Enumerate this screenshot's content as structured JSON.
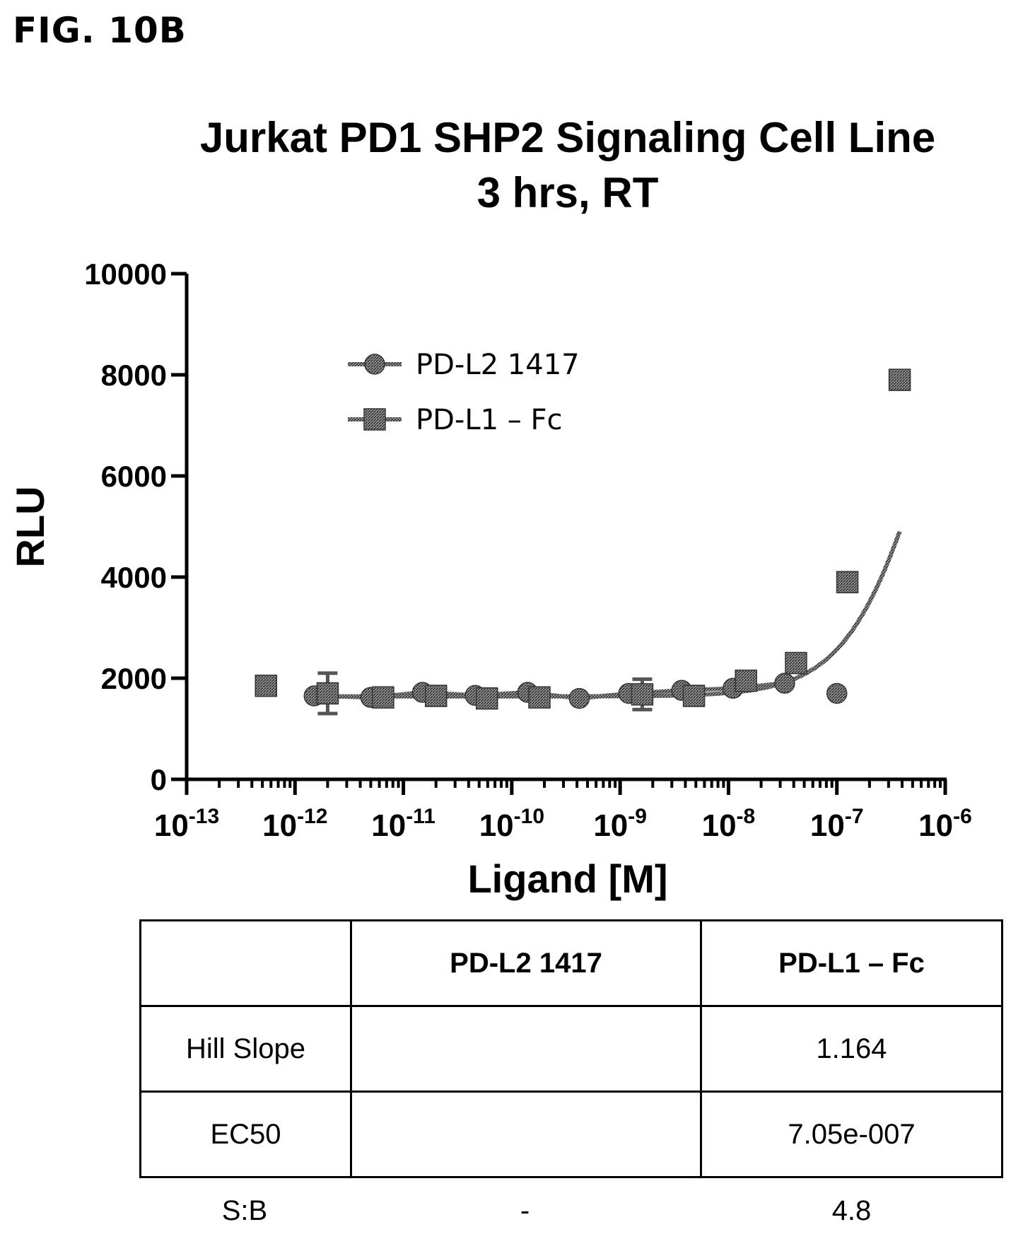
{
  "figure_label": "FIG. 10B",
  "chart_data": {
    "type": "scatter",
    "title": "Jurkat PD1 SHP2 Signaling Cell Line",
    "subtitle": "3 hrs, RT",
    "xlabel": "Ligand [M]",
    "ylabel": "RLU",
    "xscale": "log",
    "xlim": [
      1e-13,
      1e-06
    ],
    "ylim": [
      0,
      10000
    ],
    "yticks": [
      "0",
      "2000",
      "4000",
      "6000",
      "8000",
      "10000"
    ],
    "xticks": [
      {
        "base": "10",
        "exp": "-13"
      },
      {
        "base": "10",
        "exp": "-12"
      },
      {
        "base": "10",
        "exp": "-11"
      },
      {
        "base": "10",
        "exp": "-10"
      },
      {
        "base": "10",
        "exp": "-9"
      },
      {
        "base": "10",
        "exp": "-8"
      },
      {
        "base": "10",
        "exp": "-7"
      },
      {
        "base": "10",
        "exp": "-6"
      }
    ],
    "legend_position": "top-left",
    "series": [
      {
        "name": "PD-L2 1417",
        "marker": "circle",
        "fit": "line",
        "x": [
          1.5e-12,
          5e-12,
          1.5e-11,
          4.6e-11,
          1.4e-10,
          4.2e-10,
          1.2e-09,
          3.7e-09,
          1.1e-08,
          3.3e-08,
          1e-07
        ],
        "y": [
          1650,
          1620,
          1720,
          1660,
          1720,
          1600,
          1700,
          1760,
          1800,
          1900,
          1700
        ],
        "error": [
          0,
          0,
          0,
          0,
          0,
          0,
          0,
          0,
          0,
          0,
          0
        ]
      },
      {
        "name": "PD-L1 – Fc",
        "marker": "square",
        "fit": "sigmoid",
        "x": [
          5.4e-13,
          2e-12,
          6.5e-12,
          2e-11,
          5.9e-11,
          1.8e-10,
          1.6e-09,
          4.8e-09,
          1.45e-08,
          4.2e-08,
          1.25e-07,
          3.8e-07
        ],
        "y": [
          1850,
          1700,
          1620,
          1650,
          1600,
          1620,
          1680,
          1650,
          1950,
          2300,
          3900,
          7900
        ],
        "error": [
          100,
          400,
          0,
          0,
          0,
          0,
          300,
          0,
          0,
          0,
          150,
          150
        ]
      }
    ]
  },
  "table": {
    "headers": [
      "",
      "PD-L2 1417",
      "PD-L1 – Fc"
    ],
    "rows": [
      [
        "Hill Slope",
        "",
        "1.164"
      ],
      [
        "EC50",
        "",
        "7.05e-007"
      ]
    ],
    "sb_row": [
      "S:B",
      "-",
      "4.8"
    ]
  }
}
